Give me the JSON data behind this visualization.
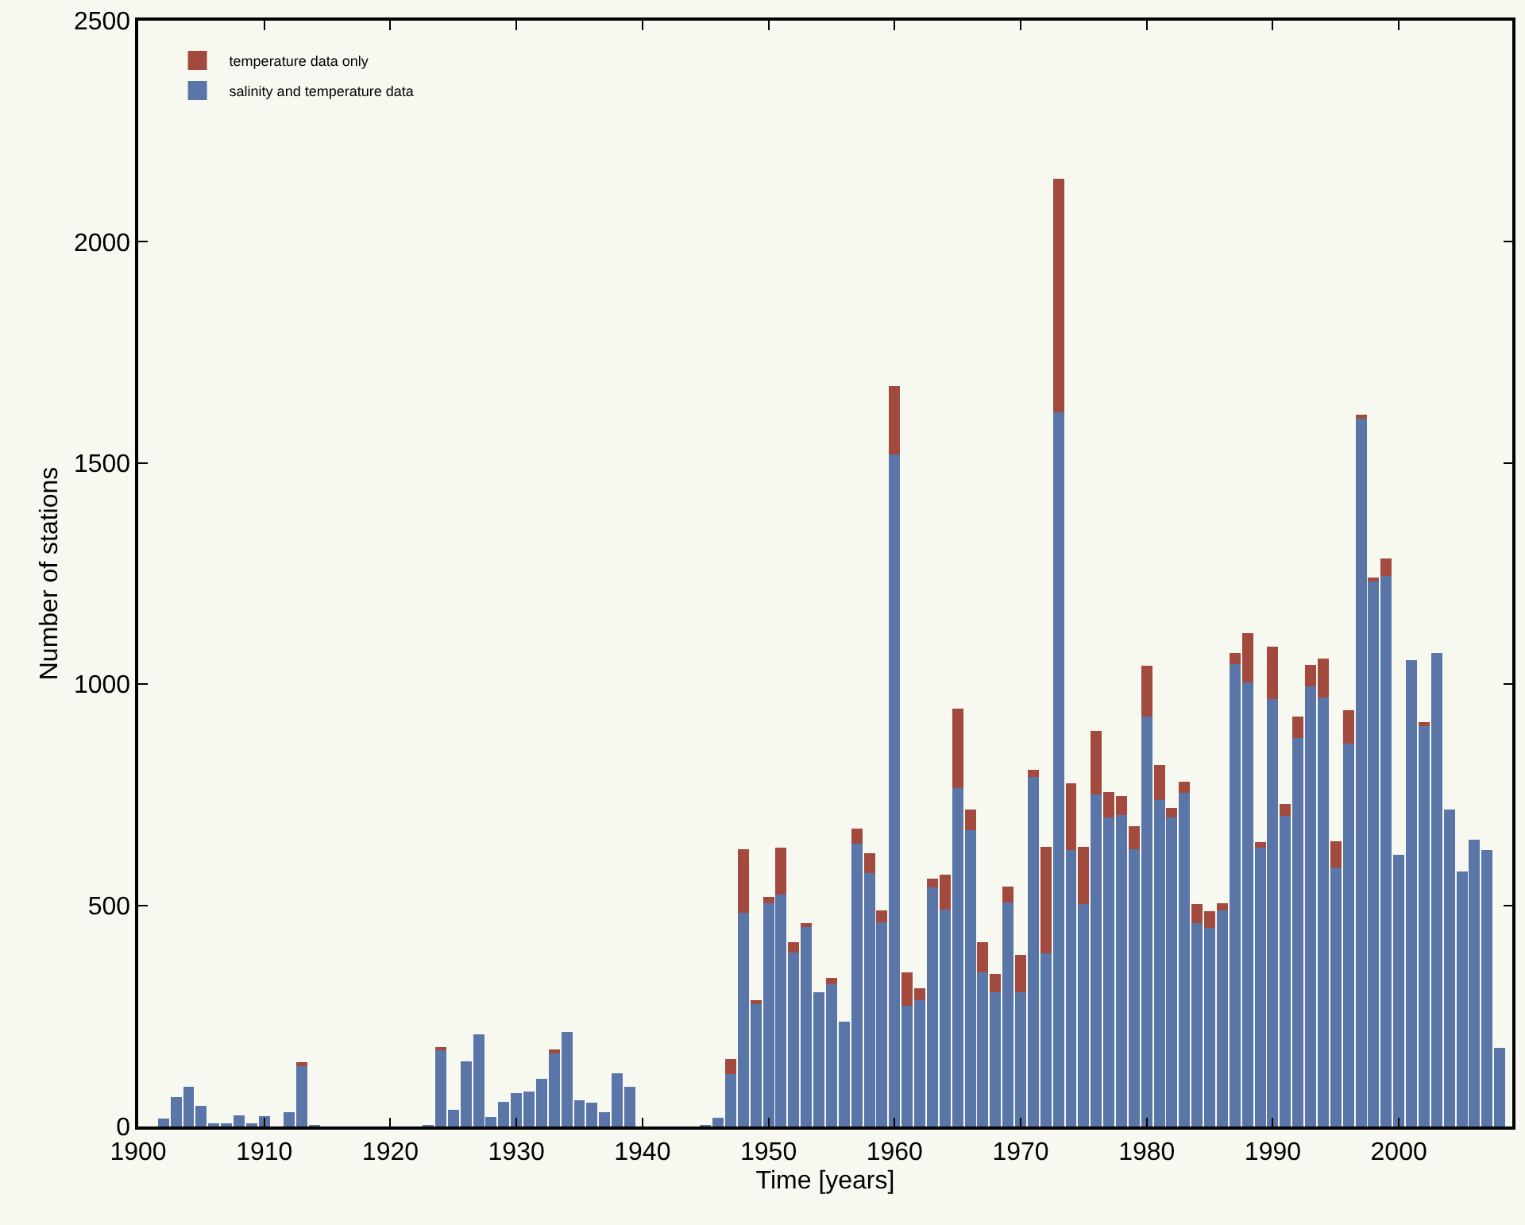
{
  "chart_data": {
    "type": "bar",
    "stacked": true,
    "xlabel": "Time [years]",
    "ylabel": "Number of stations",
    "x": [
      1902,
      1903,
      1904,
      1905,
      1906,
      1907,
      1908,
      1909,
      1910,
      1911,
      1912,
      1913,
      1914,
      1915,
      1916,
      1917,
      1918,
      1919,
      1920,
      1921,
      1922,
      1923,
      1924,
      1925,
      1926,
      1927,
      1928,
      1929,
      1930,
      1931,
      1932,
      1933,
      1934,
      1935,
      1936,
      1937,
      1938,
      1939,
      1940,
      1941,
      1942,
      1943,
      1944,
      1945,
      1946,
      1947,
      1948,
      1949,
      1950,
      1951,
      1952,
      1953,
      1954,
      1955,
      1956,
      1957,
      1958,
      1959,
      1960,
      1961,
      1962,
      1963,
      1964,
      1965,
      1966,
      1967,
      1968,
      1969,
      1970,
      1971,
      1972,
      1973,
      1974,
      1975,
      1976,
      1977,
      1978,
      1979,
      1980,
      1981,
      1982,
      1983,
      1984,
      1985,
      1986,
      1987,
      1988,
      1989,
      1990,
      1991,
      1992,
      1993,
      1994,
      1995,
      1996,
      1997,
      1998,
      1999,
      2000,
      2001,
      2002,
      2003,
      2004,
      2005,
      2006,
      2007,
      2008
    ],
    "series": [
      {
        "name": "salinity and temperature data",
        "color": "#5a76a8",
        "values": [
          18,
          66,
          90,
          46,
          5,
          5,
          25,
          8,
          24,
          0,
          33,
          139,
          2,
          0,
          0,
          0,
          0,
          0,
          0,
          0,
          0,
          2,
          174,
          38,
          147,
          209,
          22,
          55,
          76,
          79,
          108,
          168,
          213,
          60,
          54,
          32,
          120,
          89,
          0,
          0,
          0,
          0,
          0,
          2,
          19,
          118,
          483,
          276,
          504,
          525,
          393,
          450,
          303,
          321,
          237,
          639,
          573,
          462,
          1520,
          273,
          285,
          541,
          490,
          765,
          670,
          349,
          304,
          507,
          304,
          790,
          391,
          1615,
          625,
          503,
          751,
          699,
          704,
          627,
          926,
          739,
          699,
          754,
          460,
          449,
          489,
          1046,
          1004,
          631,
          966,
          702,
          878,
          995,
          969,
          585,
          866,
          1600,
          1235,
          1244,
          615,
          1055,
          908,
          1071,
          717,
          577,
          648,
          625,
          178
        ]
      },
      {
        "name": "temperature data only",
        "color": "#a24a3e",
        "values": [
          0,
          0,
          0,
          0,
          0,
          0,
          0,
          0,
          0,
          0,
          0,
          7,
          0,
          0,
          0,
          0,
          0,
          0,
          0,
          0,
          0,
          0,
          6,
          0,
          0,
          0,
          0,
          0,
          0,
          0,
          0,
          6,
          0,
          0,
          0,
          0,
          0,
          0,
          0,
          0,
          0,
          0,
          0,
          0,
          0,
          35,
          144,
          9,
          15,
          106,
          24,
          9,
          0,
          15,
          0,
          34,
          45,
          27,
          154,
          76,
          27,
          20,
          80,
          180,
          47,
          67,
          41,
          36,
          84,
          17,
          241,
          527,
          150,
          129,
          143,
          58,
          43,
          51,
          115,
          79,
          22,
          26,
          43,
          38,
          16,
          25,
          111,
          12,
          119,
          27,
          49,
          48,
          89,
          60,
          76,
          9,
          6,
          40,
          0,
          0,
          6,
          0,
          0,
          0,
          0,
          0,
          0
        ]
      }
    ],
    "xlim": [
      1900,
      2009
    ],
    "xticks": [
      1900,
      1910,
      1920,
      1930,
      1940,
      1950,
      1960,
      1970,
      1980,
      1990,
      2000
    ],
    "ylim": [
      0,
      2500
    ],
    "yticks": [
      0,
      500,
      1000,
      1500,
      2000,
      2500
    ],
    "legend": "top left",
    "grid": false
  }
}
